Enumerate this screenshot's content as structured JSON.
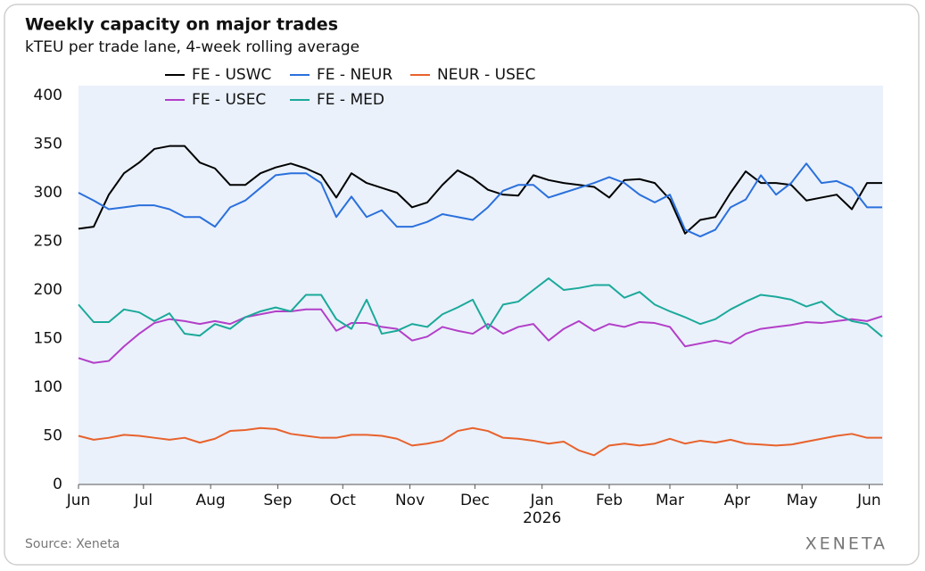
{
  "chart_data": {
    "type": "line",
    "title": "Weekly capacity on major trades",
    "subtitle": "kTEU per trade lane, 4-week rolling average",
    "source": "Source: Xeneta",
    "brand": "XENETA",
    "year_label": "2026",
    "legend": "upper center",
    "grid": false,
    "x": [
      0,
      7,
      14,
      21,
      28,
      35,
      42,
      49,
      56,
      63,
      70,
      77,
      84,
      91,
      98,
      105,
      112,
      119,
      126,
      133,
      140,
      147,
      154,
      161,
      168,
      175,
      182,
      189,
      196,
      203,
      210,
      217,
      224,
      231,
      238,
      245,
      252,
      259,
      266,
      273,
      280,
      287,
      294,
      301,
      308,
      315,
      322,
      329,
      336,
      343,
      350,
      357,
      364,
      371
    ],
    "xlim": [
      0,
      371
    ],
    "xticks": [
      {
        "value": 0,
        "label": "Jun"
      },
      {
        "value": 30,
        "label": "Jul"
      },
      {
        "value": 61,
        "label": "Aug"
      },
      {
        "value": 92,
        "label": "Sep"
      },
      {
        "value": 122,
        "label": "Oct"
      },
      {
        "value": 153,
        "label": "Nov"
      },
      {
        "value": 183,
        "label": "Dec"
      },
      {
        "value": 214,
        "label": "Jan"
      },
      {
        "value": 245,
        "label": "Feb"
      },
      {
        "value": 273,
        "label": "Mar"
      },
      {
        "value": 304,
        "label": "Apr"
      },
      {
        "value": 334,
        "label": "May"
      },
      {
        "value": 365,
        "label": "Jun"
      }
    ],
    "ylim": [
      0,
      400
    ],
    "yticks": [
      0,
      50,
      100,
      150,
      200,
      250,
      300,
      350,
      400
    ],
    "series": [
      {
        "name": "FE - USWC",
        "color": "#000000",
        "values": [
          263,
          265,
          298,
          320,
          331,
          345,
          348,
          348,
          331,
          325,
          308,
          308,
          320,
          326,
          330,
          325,
          318,
          295,
          320,
          310,
          305,
          300,
          285,
          290,
          308,
          323,
          315,
          303,
          298,
          297,
          318,
          313,
          310,
          308,
          306,
          295,
          313,
          314,
          310,
          293,
          258,
          272,
          275,
          300,
          322,
          310,
          310,
          308,
          292,
          295,
          298,
          283,
          310,
          310
        ]
      },
      {
        "name": "FE - NEUR",
        "color": "#2b70dc",
        "values": [
          300,
          292,
          283,
          285,
          287,
          287,
          283,
          275,
          275,
          265,
          285,
          292,
          305,
          318,
          320,
          320,
          310,
          275,
          296,
          275,
          282,
          265,
          265,
          270,
          278,
          275,
          272,
          285,
          302,
          308,
          308,
          295,
          300,
          305,
          310,
          316,
          310,
          298,
          290,
          298,
          262,
          255,
          262,
          285,
          293,
          318,
          298,
          310,
          330,
          310,
          312,
          305,
          285,
          285
        ]
      },
      {
        "name": "NEUR - USEC",
        "color": "#e8622c",
        "values": [
          50,
          46,
          48,
          51,
          50,
          48,
          46,
          48,
          43,
          47,
          55,
          56,
          58,
          57,
          52,
          50,
          48,
          48,
          51,
          51,
          50,
          47,
          40,
          42,
          45,
          55,
          58,
          55,
          48,
          47,
          45,
          42,
          44,
          35,
          30,
          40,
          42,
          40,
          42,
          47,
          42,
          45,
          43,
          46,
          42,
          41,
          40,
          41,
          44,
          47,
          50,
          52,
          48,
          48
        ]
      },
      {
        "name": "FE - USEC",
        "color": "#b33fc8",
        "values": [
          130,
          125,
          127,
          142,
          155,
          166,
          170,
          168,
          165,
          168,
          165,
          172,
          175,
          178,
          178,
          180,
          180,
          158,
          166,
          166,
          162,
          160,
          148,
          152,
          162,
          158,
          155,
          165,
          155,
          162,
          165,
          148,
          160,
          168,
          158,
          165,
          162,
          167,
          166,
          162,
          142,
          145,
          148,
          145,
          155,
          160,
          162,
          164,
          167,
          166,
          168,
          170,
          168,
          173
        ]
      },
      {
        "name": "FE - MED",
        "color": "#1ba99a",
        "values": [
          185,
          167,
          167,
          180,
          177,
          168,
          176,
          155,
          153,
          165,
          160,
          172,
          178,
          182,
          178,
          195,
          195,
          170,
          160,
          190,
          155,
          158,
          165,
          162,
          175,
          182,
          190,
          160,
          185,
          188,
          200,
          212,
          200,
          202,
          205,
          205,
          192,
          198,
          185,
          178,
          172,
          165,
          170,
          180,
          188,
          195,
          193,
          190,
          183,
          188,
          175,
          168,
          165,
          152
        ]
      }
    ]
  }
}
